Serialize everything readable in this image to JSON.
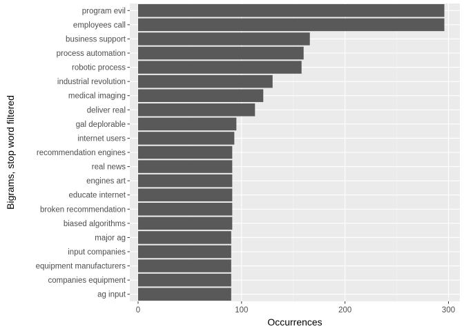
{
  "chart_data": {
    "type": "bar",
    "orientation": "horizontal",
    "xlabel": "Occurrences",
    "ylabel": "Bigrams, stop word filtered",
    "xlim": [
      -8,
      311
    ],
    "x_ticks": [
      0,
      100,
      200,
      300
    ],
    "grid": true,
    "colors": {
      "bar": "#595959",
      "panel": "#ebebeb",
      "grid_major": "#ffffff"
    },
    "categories": [
      "program evil",
      "employees call",
      "business support",
      "process automation",
      "robotic process",
      "industrial revolution",
      "medical imaging",
      "deliver real",
      "gal deplorable",
      "internet users",
      "recommendation engines",
      "real news",
      "engines art",
      "educate internet",
      "broken recommendation",
      "biased algorithms",
      "major ag",
      "input companies",
      "equipment manufacturers",
      "companies equipment",
      "ag input"
    ],
    "values": [
      296,
      296,
      166,
      160,
      158,
      130,
      121,
      113,
      95,
      93,
      91,
      91,
      91,
      91,
      91,
      91,
      90,
      90,
      90,
      90,
      90
    ]
  }
}
